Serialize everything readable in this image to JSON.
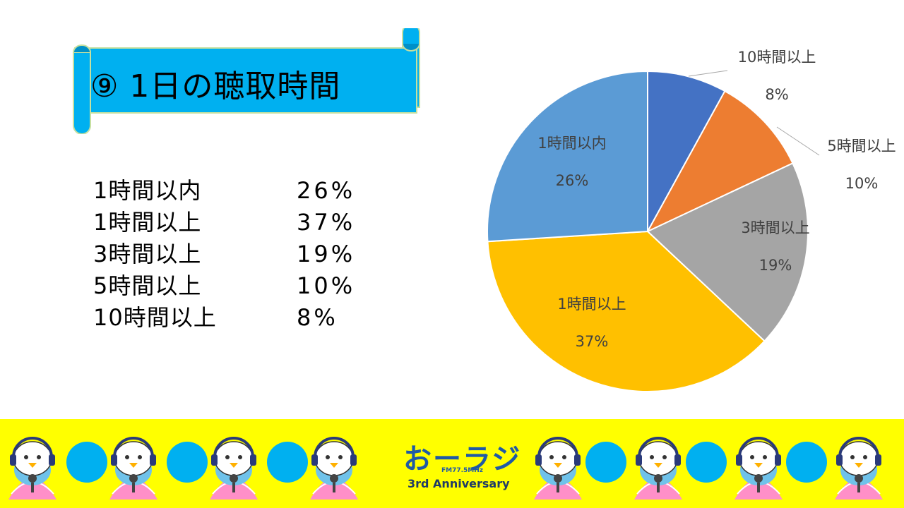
{
  "title": "⑨ 1日の聴取時間",
  "summary": [
    {
      "label": "1時間以内",
      "value": "26%"
    },
    {
      "label": "1時間以上",
      "value": "37%"
    },
    {
      "label": "3時間以上",
      "value": "19%"
    },
    {
      "label": "5時間以上",
      "value": "10%"
    },
    {
      "label": "10時間以上",
      "value": "8%"
    }
  ],
  "chart_data": {
    "type": "pie",
    "title": "",
    "categories": [
      "10時間以上",
      "5時間以上",
      "3時間以上",
      "1時間以上",
      "1時間以内"
    ],
    "values": [
      8,
      10,
      19,
      37,
      26
    ],
    "value_labels": [
      "8%",
      "10%",
      "19%",
      "37%",
      "26%"
    ],
    "colors": [
      "#4472c4",
      "#ed7d31",
      "#a5a5a5",
      "#ffc000",
      "#5b9bd5"
    ],
    "start": "12 o'clock, clockwise",
    "legend": "none"
  },
  "footer": {
    "logo_text": "おーラジ",
    "logo_frequency": "FM77.5MHz",
    "logo_anniversary": "3rd Anniversary",
    "mascot_icon": "penguin-mascot-icon",
    "dot_color": "#00b0f0",
    "background": "#ffff00"
  }
}
